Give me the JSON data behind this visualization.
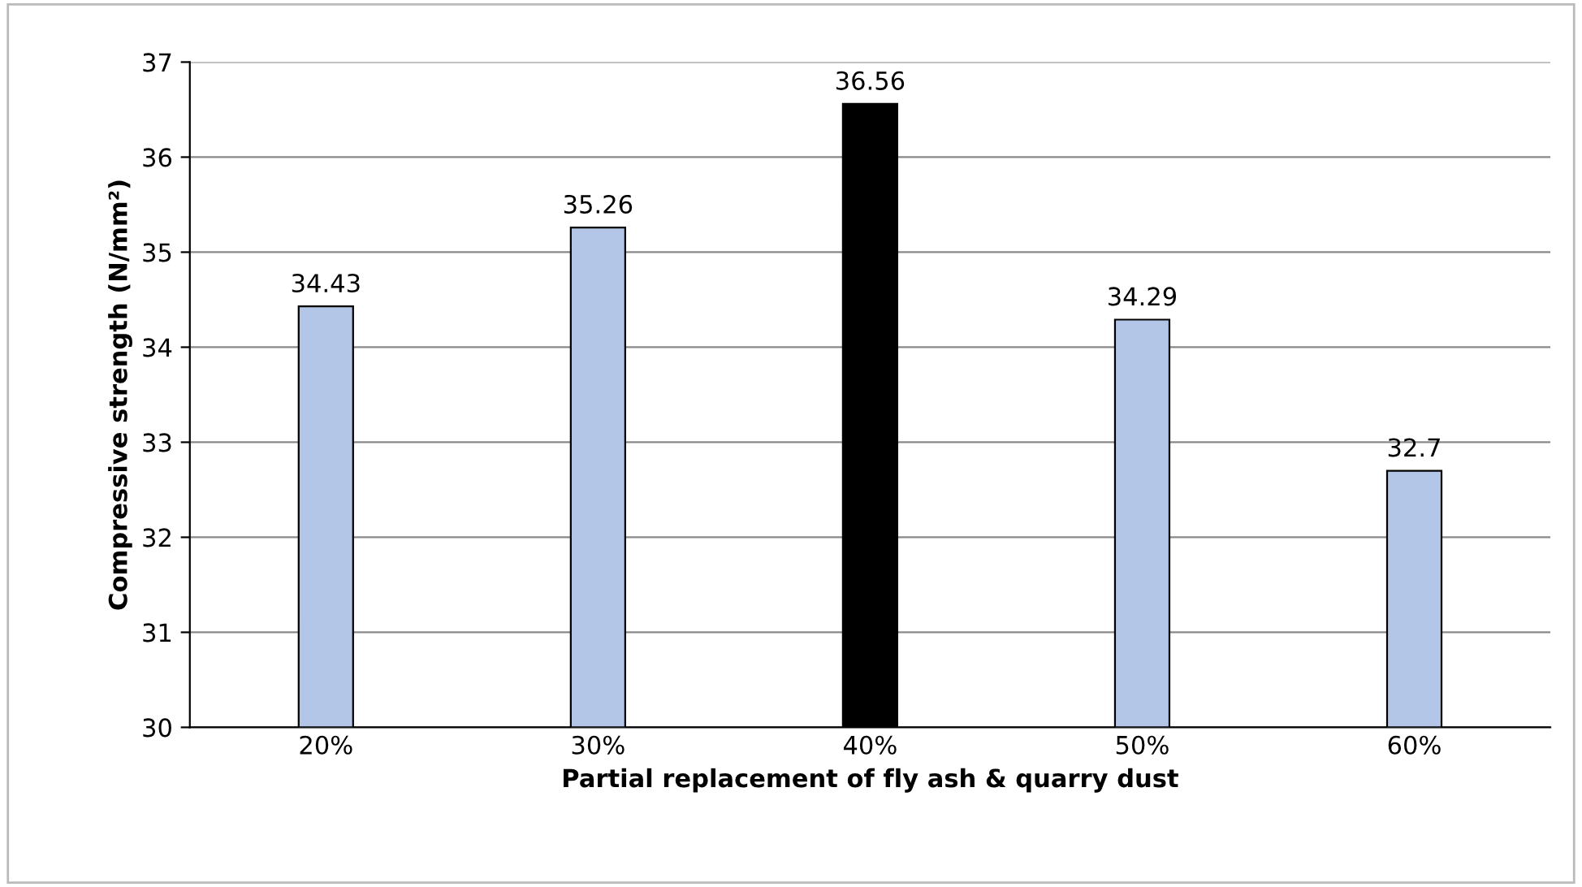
{
  "chart_data": {
    "type": "bar",
    "xlabel": "Partial replacement of fly ash & quarry dust",
    "ylabel": "Compressive strength (N/mm²)",
    "categories": [
      "20%",
      "30%",
      "40%",
      "50%",
      "60%"
    ],
    "values": [
      34.43,
      35.26,
      36.56,
      34.29,
      32.7
    ],
    "colors": [
      "#b4c6e7",
      "#b4c6e7",
      "#000000",
      "#b4c6e7",
      "#b4c6e7"
    ],
    "ylim": [
      30,
      37
    ],
    "yticks": [
      30,
      31,
      32,
      33,
      34,
      35,
      36,
      37
    ],
    "grid": "y",
    "data_labels": true
  }
}
